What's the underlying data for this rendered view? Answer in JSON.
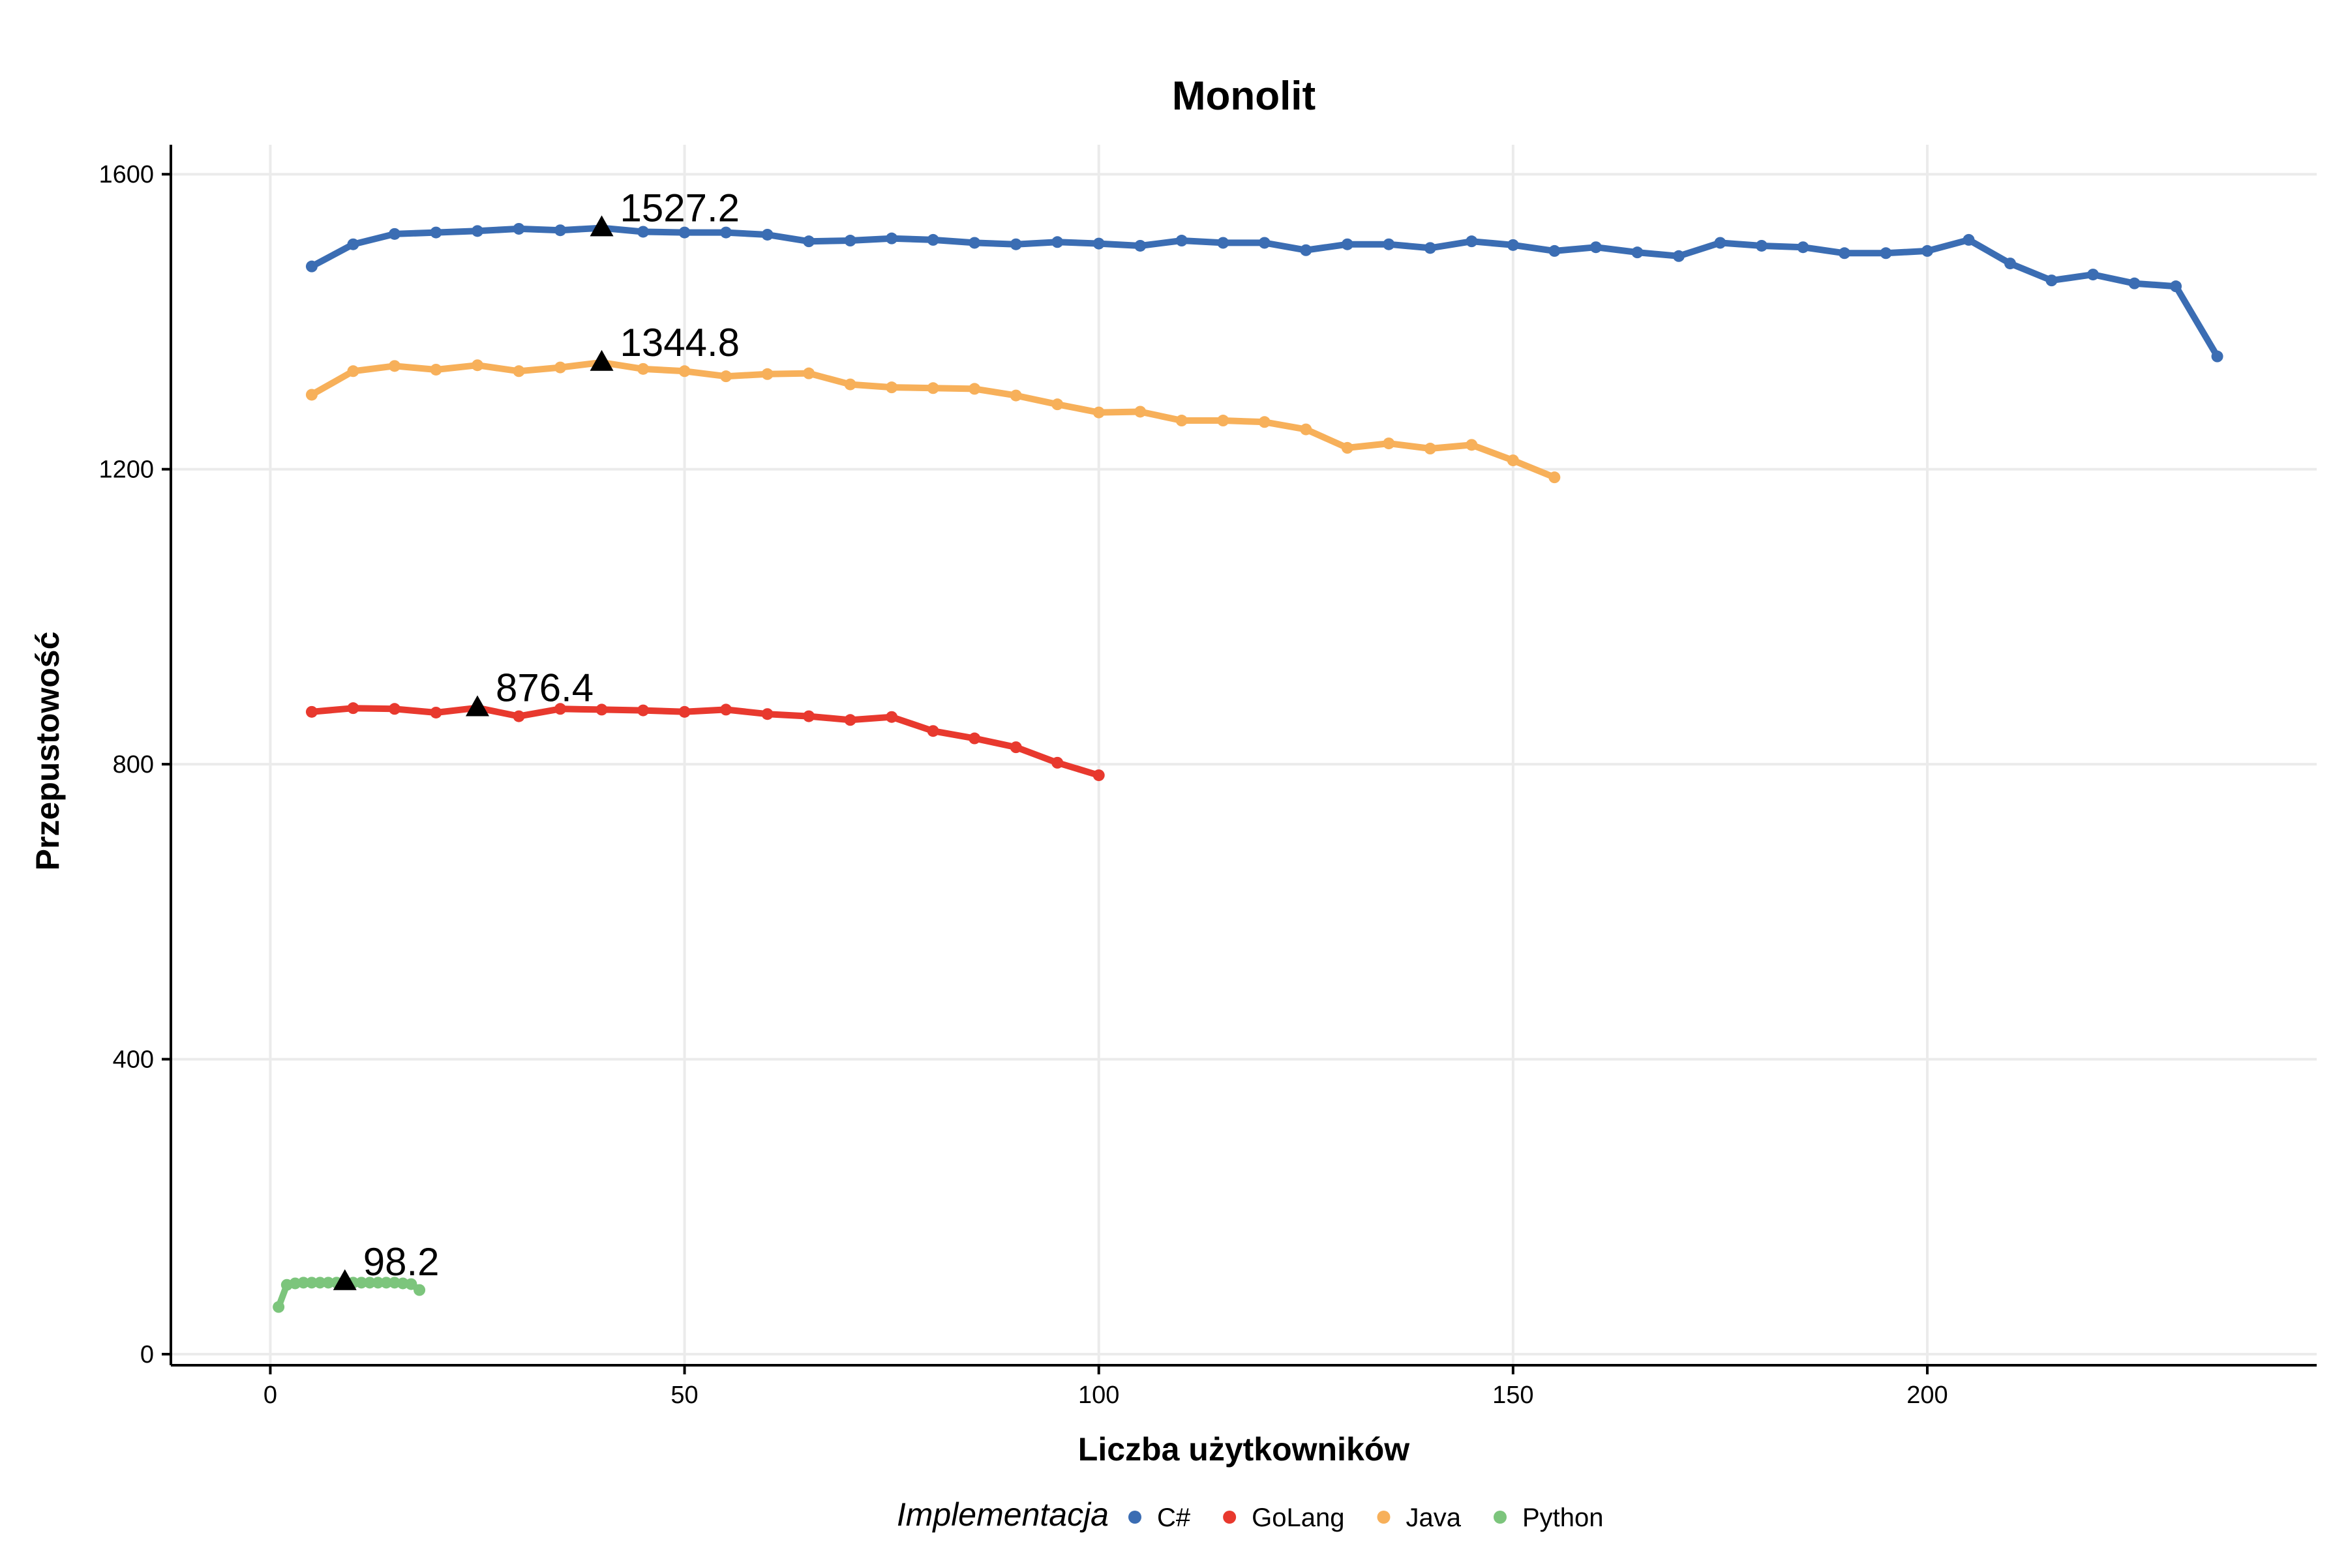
{
  "chart_data": {
    "type": "line",
    "title": "Monolit",
    "xlabel": "Liczba użytkowników",
    "ylabel": "Przepustowość",
    "xlim": [
      -12,
      247
    ],
    "ylim": [
      -15,
      1640
    ],
    "x_ticks": [
      0,
      50,
      100,
      150,
      200
    ],
    "y_ticks": [
      0,
      400,
      800,
      1200,
      1600
    ],
    "grid": true,
    "legend": {
      "title": "Implementacja",
      "position": "bottom"
    },
    "colors": {
      "C#": "#3b6db3",
      "GoLang": "#e8392e",
      "Java": "#f7b05a",
      "Python": "#7cc57c",
      "grid": "#ebebeb",
      "axis": "#000000",
      "marker": "#000000"
    },
    "series": [
      {
        "name": "C#",
        "x": [
          5,
          10,
          15,
          20,
          25,
          30,
          35,
          40,
          45,
          50,
          55,
          60,
          65,
          70,
          75,
          80,
          85,
          90,
          95,
          100,
          105,
          110,
          115,
          120,
          125,
          130,
          135,
          140,
          145,
          150,
          155,
          160,
          165,
          170,
          175,
          180,
          185,
          190,
          195,
          200,
          205,
          210,
          215,
          220,
          225,
          230,
          235
        ],
        "values": [
          1475,
          1505,
          1519,
          1521,
          1523,
          1526,
          1524,
          1527.2,
          1522,
          1521,
          1521,
          1518,
          1509,
          1510,
          1513,
          1511,
          1507,
          1505,
          1508,
          1506,
          1503,
          1510,
          1507,
          1507,
          1497,
          1505,
          1505,
          1500,
          1509,
          1504,
          1496,
          1501,
          1494,
          1489,
          1507,
          1503,
          1501,
          1493,
          1493,
          1496,
          1511,
          1479,
          1456,
          1464,
          1452,
          1448,
          1353
        ]
      },
      {
        "name": "GoLang",
        "x": [
          5,
          10,
          15,
          20,
          25,
          30,
          35,
          40,
          45,
          50,
          55,
          60,
          65,
          70,
          75,
          80,
          85,
          90,
          95,
          100
        ],
        "values": [
          871,
          876,
          875,
          870,
          876.4,
          865,
          875,
          874,
          873,
          871,
          874,
          868,
          865,
          860,
          864,
          845,
          835,
          823,
          802,
          785
        ]
      },
      {
        "name": "Java",
        "x": [
          5,
          10,
          15,
          20,
          25,
          30,
          35,
          40,
          45,
          50,
          55,
          60,
          65,
          70,
          75,
          80,
          85,
          90,
          95,
          100,
          105,
          110,
          115,
          120,
          125,
          130,
          135,
          140,
          145,
          150,
          155
        ],
        "values": [
          1301,
          1333,
          1340,
          1335,
          1341,
          1333,
          1338,
          1344.8,
          1336,
          1333,
          1326,
          1329,
          1330,
          1315,
          1311,
          1310,
          1309,
          1300,
          1288,
          1277,
          1278,
          1266,
          1266,
          1264,
          1254,
          1229,
          1235,
          1228,
          1233,
          1212,
          1189
        ]
      },
      {
        "name": "Python",
        "x": [
          1,
          2,
          3,
          4,
          5,
          6,
          7,
          8,
          9,
          10,
          11,
          12,
          13,
          14,
          15,
          16,
          17,
          18
        ],
        "values": [
          64,
          94,
          96,
          97,
          97,
          97,
          97,
          97,
          98.2,
          97,
          97,
          97,
          97,
          97,
          97,
          96,
          95,
          87
        ]
      }
    ],
    "annotations": [
      {
        "series": "C#",
        "x": 40,
        "y": 1527.2,
        "label": "1527.2"
      },
      {
        "series": "Java",
        "x": 40,
        "y": 1344.8,
        "label": "1344.8"
      },
      {
        "series": "GoLang",
        "x": 25,
        "y": 876.4,
        "label": "876.4"
      },
      {
        "series": "Python",
        "x": 9,
        "y": 98.2,
        "label": "98.2"
      }
    ]
  }
}
